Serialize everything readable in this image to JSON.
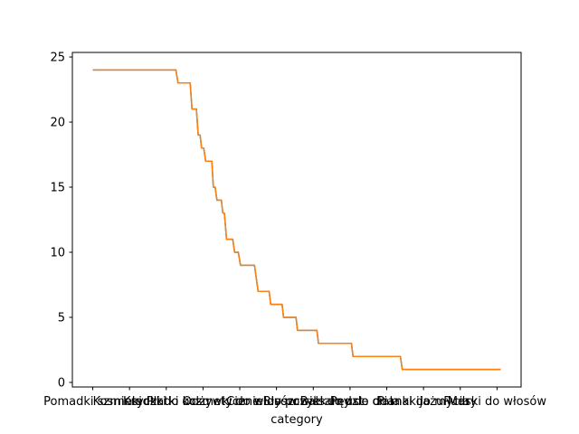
{
  "chart_data": {
    "type": "line",
    "title": "",
    "xlabel": "category",
    "ylabel": "",
    "ylim": [
      0,
      25
    ],
    "yticks": [
      0,
      5,
      10,
      15,
      20,
      25
    ],
    "grid": false,
    "x_tick_labels": [
      "Pomadki szminki",
      "Kosmetyczki",
      "Kredki do oczu",
      "Płatki kosmetyczne",
      "Odżywki do włosów",
      "Cienie do powiek",
      "Błyszczyki do ust",
      "Balsamy do ciała",
      "Pędzle do makijażu",
      "Pianki do mycia",
      "Pudry",
      "Maski do włosów"
    ],
    "x_tick_positions": [
      0,
      10,
      20,
      30,
      40,
      50,
      60,
      70,
      80,
      90,
      100,
      110
    ],
    "series": [
      {
        "color": "#1f77b4",
        "points": [
          [
            0,
            24
          ],
          [
            22.6,
            24
          ],
          [
            23.2,
            23
          ],
          [
            26.5,
            23
          ],
          [
            27.0,
            21
          ],
          [
            28.2,
            21
          ],
          [
            28.7,
            19
          ],
          [
            29.2,
            19
          ],
          [
            29.6,
            18
          ],
          [
            30.2,
            18
          ],
          [
            30.7,
            17
          ],
          [
            32.4,
            17
          ],
          [
            32.8,
            15
          ],
          [
            33.3,
            15
          ],
          [
            33.8,
            14
          ],
          [
            35.0,
            14
          ],
          [
            35.4,
            13
          ],
          [
            35.8,
            13
          ],
          [
            36.4,
            11
          ],
          [
            38.1,
            11
          ],
          [
            38.6,
            10
          ],
          [
            39.6,
            10
          ],
          [
            40.2,
            9
          ],
          [
            44.0,
            9
          ],
          [
            45.0,
            7
          ],
          [
            48.0,
            7
          ],
          [
            48.4,
            6
          ],
          [
            51.5,
            6
          ],
          [
            51.9,
            5
          ],
          [
            55.3,
            5
          ],
          [
            55.7,
            4
          ],
          [
            61.0,
            4
          ],
          [
            61.4,
            3
          ],
          [
            70.4,
            3
          ],
          [
            70.8,
            2
          ],
          [
            83.7,
            2
          ],
          [
            84.2,
            1
          ],
          [
            111,
            1
          ]
        ]
      },
      {
        "color": "#ff7f0e",
        "points": [
          [
            0,
            24
          ],
          [
            22.6,
            24
          ],
          [
            23.2,
            23
          ],
          [
            26.5,
            23
          ],
          [
            27.0,
            21
          ],
          [
            28.2,
            21
          ],
          [
            28.7,
            19
          ],
          [
            29.2,
            19
          ],
          [
            29.6,
            18
          ],
          [
            30.2,
            18
          ],
          [
            30.7,
            17
          ],
          [
            32.4,
            17
          ],
          [
            32.8,
            15
          ],
          [
            33.3,
            15
          ],
          [
            33.8,
            14
          ],
          [
            35.0,
            14
          ],
          [
            35.4,
            13
          ],
          [
            35.8,
            13
          ],
          [
            36.4,
            11
          ],
          [
            38.1,
            11
          ],
          [
            38.6,
            10
          ],
          [
            39.6,
            10
          ],
          [
            40.2,
            9
          ],
          [
            44.0,
            9
          ],
          [
            45.0,
            7
          ],
          [
            48.0,
            7
          ],
          [
            48.4,
            6
          ],
          [
            51.5,
            6
          ],
          [
            51.9,
            5
          ],
          [
            55.3,
            5
          ],
          [
            55.7,
            4
          ],
          [
            61.0,
            4
          ],
          [
            61.4,
            3
          ],
          [
            70.4,
            3
          ],
          [
            70.8,
            2
          ],
          [
            83.7,
            2
          ],
          [
            84.2,
            1
          ],
          [
            111,
            1
          ]
        ]
      }
    ]
  }
}
